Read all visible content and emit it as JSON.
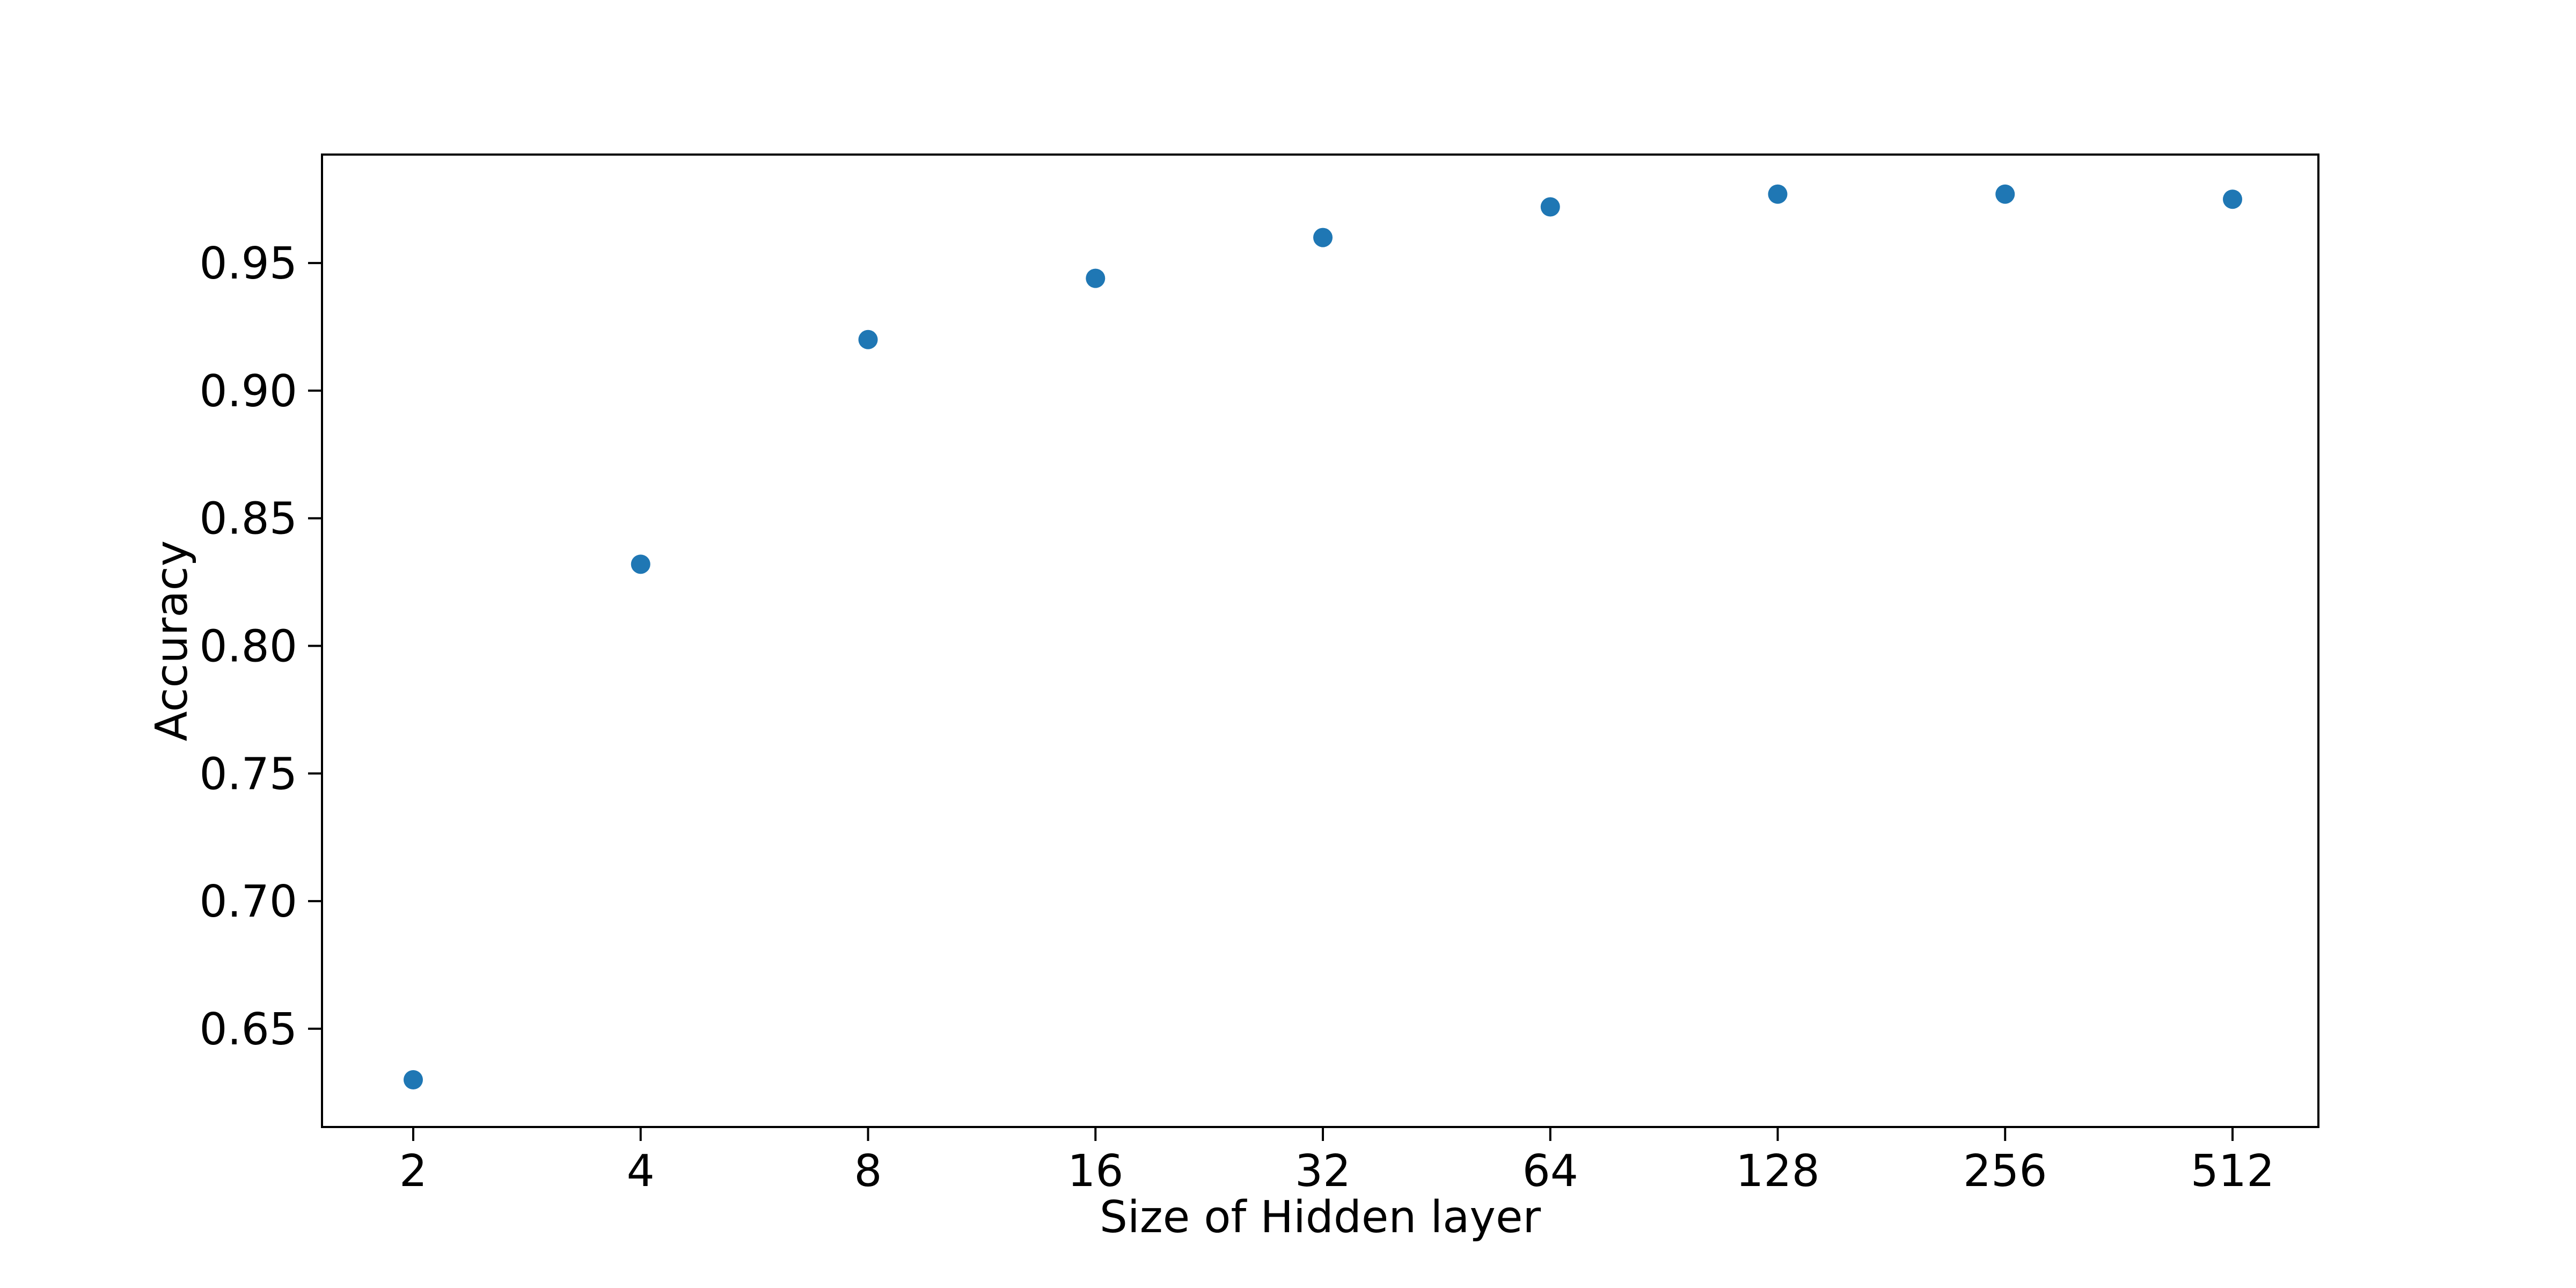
{
  "chart_data": {
    "type": "scatter",
    "title": "",
    "xlabel": "Size of Hidden layer",
    "ylabel": "Accuracy",
    "x_scale": "log2",
    "x": [
      2,
      4,
      8,
      16,
      32,
      64,
      128,
      256,
      512
    ],
    "x_tick_labels": [
      "2",
      "4",
      "8",
      "16",
      "32",
      "64",
      "128",
      "256",
      "512"
    ],
    "y": [
      0.63,
      0.832,
      0.92,
      0.944,
      0.96,
      0.972,
      0.977,
      0.977,
      0.975
    ],
    "y_ticks": [
      0.65,
      0.7,
      0.75,
      0.8,
      0.85,
      0.9,
      0.95
    ],
    "y_tick_labels": [
      "0.65",
      "0.70",
      "0.75",
      "0.80",
      "0.85",
      "0.90",
      "0.95"
    ],
    "ylim": [
      0.6115,
      0.9925
    ],
    "grid": false,
    "legend": "none",
    "marker_color": "#1f77b4"
  }
}
